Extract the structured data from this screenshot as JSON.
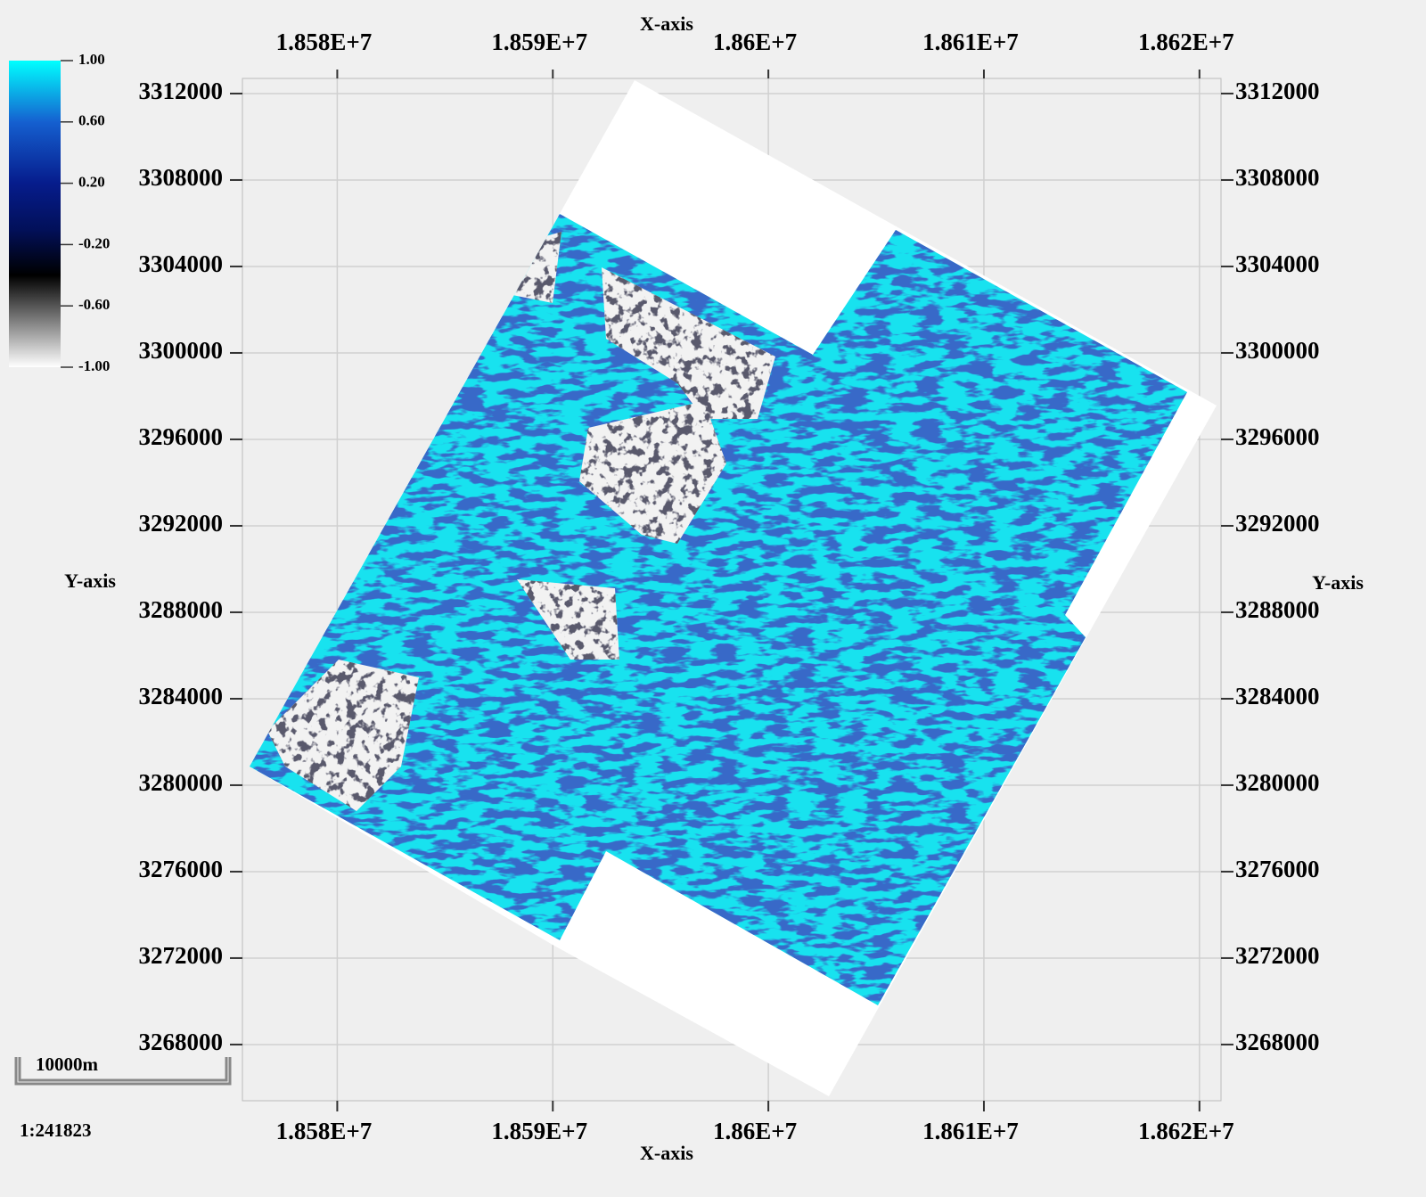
{
  "chart_data": {
    "type": "map",
    "x_label": "X-axis",
    "y_label": "Y-axis",
    "xlim": [
      18575600,
      18621000
    ],
    "xticks": [
      {
        "value": 18580000,
        "label": "1.858E+7"
      },
      {
        "value": 18590000,
        "label": "1.859E+7"
      },
      {
        "value": 18600000,
        "label": "1.86E+7"
      },
      {
        "value": 18610000,
        "label": "1.861E+7"
      },
      {
        "value": 18620000,
        "label": "1.862E+7"
      }
    ],
    "ylim": [
      3265400,
      3312700
    ],
    "yticks": [
      3268000,
      3272000,
      3276000,
      3280000,
      3284000,
      3288000,
      3292000,
      3296000,
      3300000,
      3304000,
      3308000,
      3312000
    ],
    "grid": true,
    "colorbar": {
      "lim": [
        -1,
        1
      ],
      "ticks": [
        {
          "value": 1,
          "label": "1.00"
        },
        {
          "value": 0.6,
          "label": "0.60"
        },
        {
          "value": 0.2,
          "label": "0.20"
        },
        {
          "value": -0.2,
          "label": "-0.20"
        },
        {
          "value": -0.6,
          "label": "-0.60"
        },
        {
          "value": -1,
          "label": "-1.00"
        }
      ]
    },
    "scale_bar": "10000m",
    "scale": "1:241823"
  }
}
